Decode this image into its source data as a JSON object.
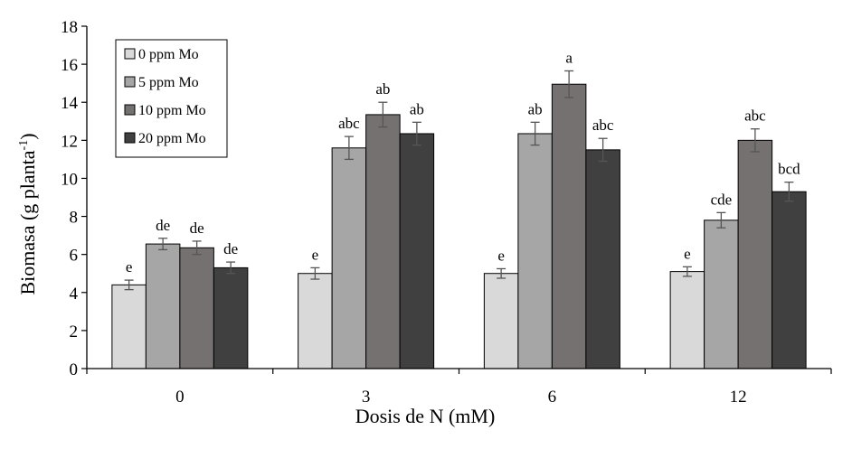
{
  "chart_data": {
    "type": "bar",
    "title": "",
    "xlabel": "Dosis de N (mM)",
    "ylabel_main": "Biomasa (g planta",
    "ylabel_sup": "-1",
    "ylabel_close": ")",
    "ylim": [
      0,
      18
    ],
    "yticks": [
      "0",
      "2",
      "4",
      "6",
      "8",
      "10",
      "12",
      "14",
      "16",
      "18"
    ],
    "categories": [
      "0",
      "3",
      "6",
      "12"
    ],
    "legend_position": "top-left",
    "grid": false,
    "series": [
      {
        "name": "0 ppm Mo",
        "color": "#d9d9d9",
        "values": [
          4.4,
          5.0,
          5.0,
          5.1
        ],
        "errors": [
          0.25,
          0.3,
          0.25,
          0.25
        ],
        "labels": [
          "e",
          "e",
          "e",
          "e"
        ]
      },
      {
        "name": "5 ppm Mo",
        "color": "#a6a6a6",
        "values": [
          6.55,
          11.6,
          12.35,
          7.8
        ],
        "errors": [
          0.3,
          0.6,
          0.6,
          0.4
        ],
        "labels": [
          "de",
          "abc",
          "ab",
          "cde"
        ]
      },
      {
        "name": "10 ppm Mo",
        "color": "#767171",
        "values": [
          6.35,
          13.35,
          14.95,
          12.0
        ],
        "errors": [
          0.35,
          0.65,
          0.7,
          0.6
        ],
        "labels": [
          "de",
          "ab",
          "a",
          "abc"
        ]
      },
      {
        "name": "20 ppm Mo",
        "color": "#404040",
        "values": [
          5.3,
          12.35,
          11.5,
          9.3
        ],
        "errors": [
          0.3,
          0.6,
          0.6,
          0.5
        ],
        "labels": [
          "de",
          "ab",
          "abc",
          "bcd"
        ]
      }
    ]
  }
}
